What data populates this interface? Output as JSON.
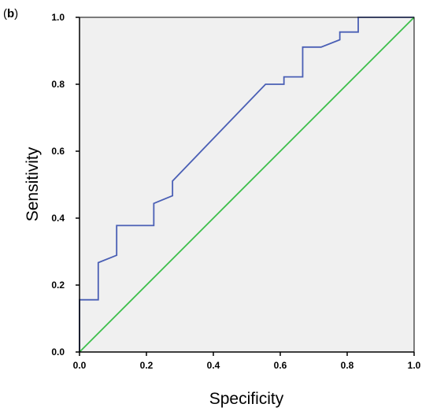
{
  "panel_label": {
    "open": "(",
    "letter": "b",
    "close": ")"
  },
  "chart_data": {
    "type": "line",
    "title": "",
    "xlabel": "Specificity",
    "ylabel": "Sensitivity",
    "xlim": [
      0.0,
      1.0
    ],
    "ylim": [
      0.0,
      1.0
    ],
    "x_ticks": [
      "0.0",
      "0.2",
      "0.4",
      "0.6",
      "0.8",
      "1.0"
    ],
    "y_ticks": [
      "0.0",
      "0.2",
      "0.4",
      "0.6",
      "0.8",
      "1.0"
    ],
    "grid": false,
    "legend": "none",
    "plot_background": "#f0f0f0",
    "series": [
      {
        "color": "#4a5fb5",
        "x": [
          0.0,
          0.0,
          0.056,
          0.056,
          0.111,
          0.111,
          0.222,
          0.222,
          0.278,
          0.278,
          0.556,
          0.611,
          0.611,
          0.667,
          0.667,
          0.722,
          0.778,
          0.778,
          0.833,
          0.833,
          1.0
        ],
        "y": [
          0.0,
          0.156,
          0.156,
          0.267,
          0.289,
          0.378,
          0.378,
          0.444,
          0.467,
          0.511,
          0.8,
          0.8,
          0.822,
          0.822,
          0.911,
          0.911,
          0.933,
          0.956,
          0.956,
          1.0,
          1.0
        ]
      },
      {
        "color": "#3cbf4a",
        "x": [
          0.0,
          1.0
        ],
        "y": [
          0.0,
          1.0
        ]
      }
    ]
  }
}
